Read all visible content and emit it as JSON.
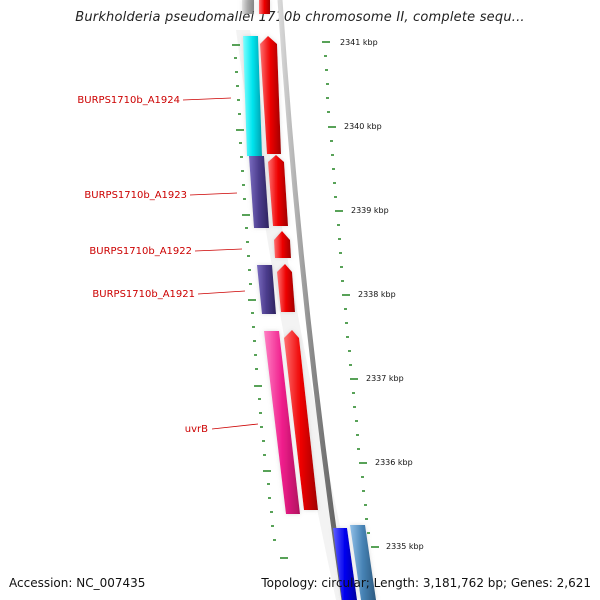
{
  "header": {
    "title": "Burkholderia pseudomallei 1710b chromosome II, complete sequ..."
  },
  "footer": {
    "accession": "Accession: NC_007435",
    "summary": "Topology: circular; Length: 3,181,762 bp; Genes: 2,621"
  },
  "map": {
    "colors": {
      "backbone": "#8a8a8a",
      "tick": "#2e8b2e",
      "label": "#cc0000",
      "forward_gene": "#ee0000",
      "cyan_gene": "#00e5ee",
      "purple_gene": "#4b3c8c",
      "pink_gene": "#f01e8c",
      "blue_gene": "#0000ee",
      "steel_gene": "#4682b4"
    },
    "scale_labels": [
      "2341 kbp",
      "2340 kbp",
      "2339 kbp",
      "2338 kbp",
      "2337 kbp",
      "2336 kbp",
      "2335 kbp"
    ],
    "gene_labels": [
      {
        "text": "BURPS1710b_A1924"
      },
      {
        "text": "BURPS1710b_A1923"
      },
      {
        "text": "BURPS1710b_A1922"
      },
      {
        "text": "BURPS1710b_A1921"
      },
      {
        "text": "uvrB"
      }
    ]
  }
}
